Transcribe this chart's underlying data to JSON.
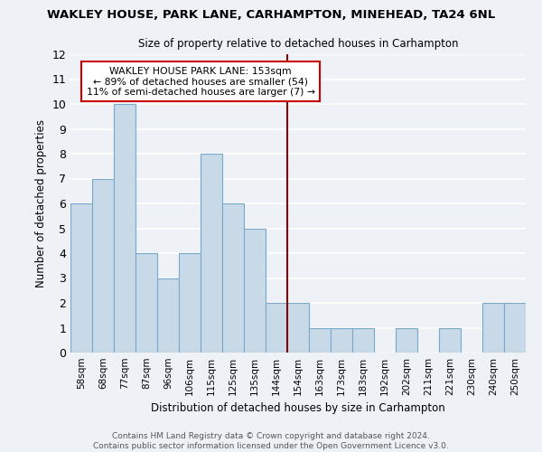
{
  "title": "WAKLEY HOUSE, PARK LANE, CARHAMPTON, MINEHEAD, TA24 6NL",
  "subtitle": "Size of property relative to detached houses in Carhampton",
  "xlabel": "Distribution of detached houses by size in Carhampton",
  "ylabel": "Number of detached properties",
  "bin_labels": [
    "58sqm",
    "68sqm",
    "77sqm",
    "87sqm",
    "96sqm",
    "106sqm",
    "115sqm",
    "125sqm",
    "135sqm",
    "144sqm",
    "154sqm",
    "163sqm",
    "173sqm",
    "183sqm",
    "192sqm",
    "202sqm",
    "211sqm",
    "221sqm",
    "230sqm",
    "240sqm",
    "250sqm"
  ],
  "bar_heights": [
    6,
    7,
    10,
    4,
    3,
    4,
    8,
    6,
    5,
    2,
    2,
    1,
    1,
    1,
    0,
    1,
    0,
    1,
    0,
    2,
    2
  ],
  "bar_color": "#c8d9e8",
  "bar_edge_color": "#7aa8c8",
  "vline_color": "#8b0000",
  "ylim": [
    0,
    12
  ],
  "yticks": [
    0,
    1,
    2,
    3,
    4,
    5,
    6,
    7,
    8,
    9,
    10,
    11,
    12
  ],
  "annotation_title": "WAKLEY HOUSE PARK LANE: 153sqm",
  "annotation_line1": "← 89% of detached houses are smaller (54)",
  "annotation_line2": "11% of semi-detached houses are larger (7) →",
  "annotation_box_color": "#ffffff",
  "annotation_box_edge": "#cc0000",
  "footer_line1": "Contains HM Land Registry data © Crown copyright and database right 2024.",
  "footer_line2": "Contains public sector information licensed under the Open Government Licence v3.0.",
  "background_color": "#eef2f7",
  "grid_color": "#ffffff"
}
